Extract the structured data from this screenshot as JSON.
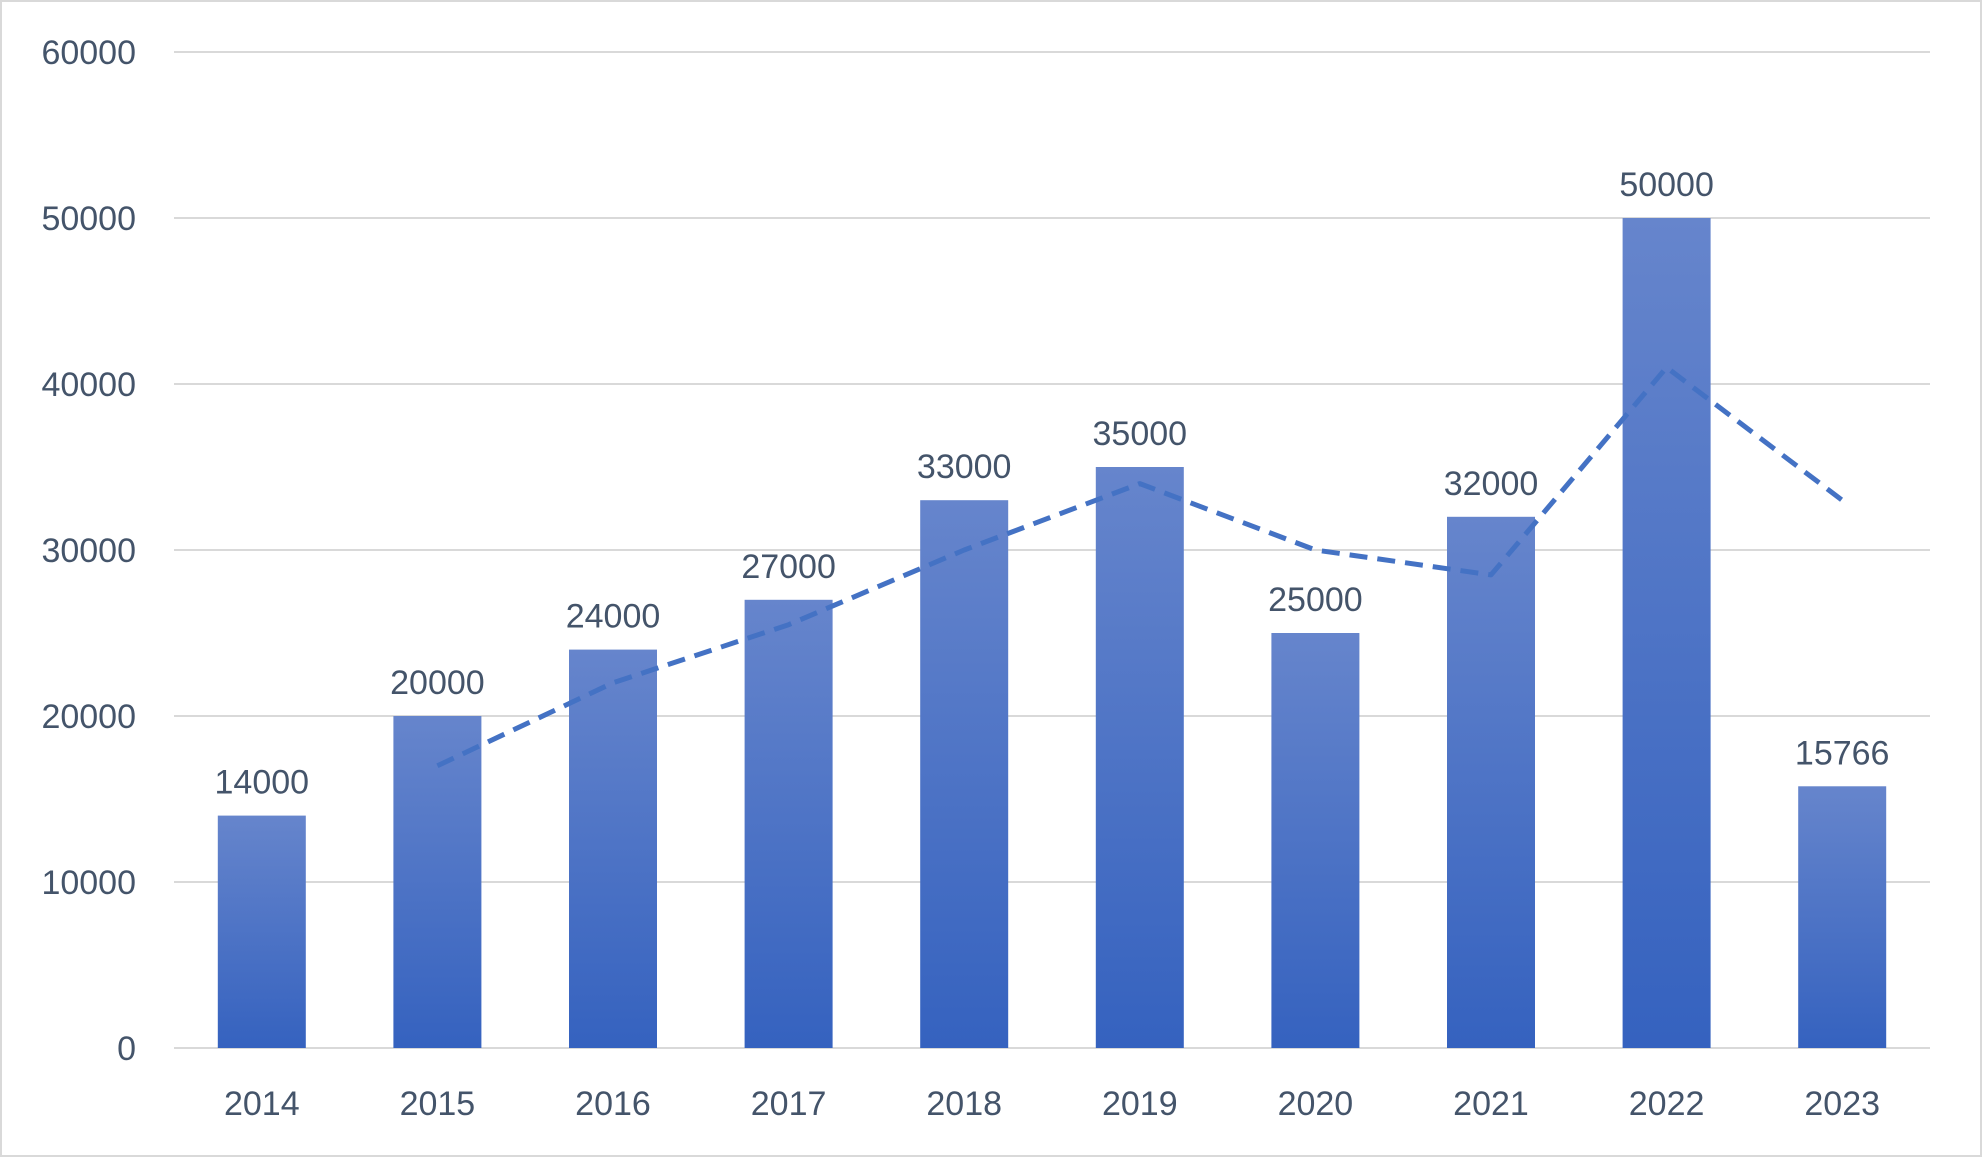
{
  "chart_data": {
    "type": "bar",
    "categories": [
      "2014",
      "2015",
      "2016",
      "2017",
      "2018",
      "2019",
      "2020",
      "2021",
      "2022",
      "2023"
    ],
    "values": [
      14000,
      20000,
      24000,
      27000,
      33000,
      35000,
      25000,
      32000,
      50000,
      15766
    ],
    "data_labels": [
      "14000",
      "20000",
      "24000",
      "27000",
      "33000",
      "35000",
      "25000",
      "32000",
      "50000",
      "15766"
    ],
    "trendline": {
      "style": "dashed",
      "x": [
        "2015",
        "2016",
        "2017",
        "2018",
        "2019",
        "2020",
        "2021",
        "2022",
        "2023"
      ],
      "values": [
        17000,
        22000,
        25500,
        30000,
        34000,
        30000,
        28500,
        41000,
        33000
      ]
    },
    "title": "",
    "xlabel": "",
    "ylabel": "",
    "ylim": [
      0,
      60000
    ],
    "yticks": [
      "0",
      "10000",
      "20000",
      "30000",
      "40000",
      "50000",
      "60000"
    ],
    "grid": true,
    "legend": "none",
    "colors": {
      "bar_top": "#6685cc",
      "bar_bottom": "#3562bf",
      "trendline": "#4472c4",
      "grid": "#d9d9d9",
      "text": "#44546a"
    }
  }
}
